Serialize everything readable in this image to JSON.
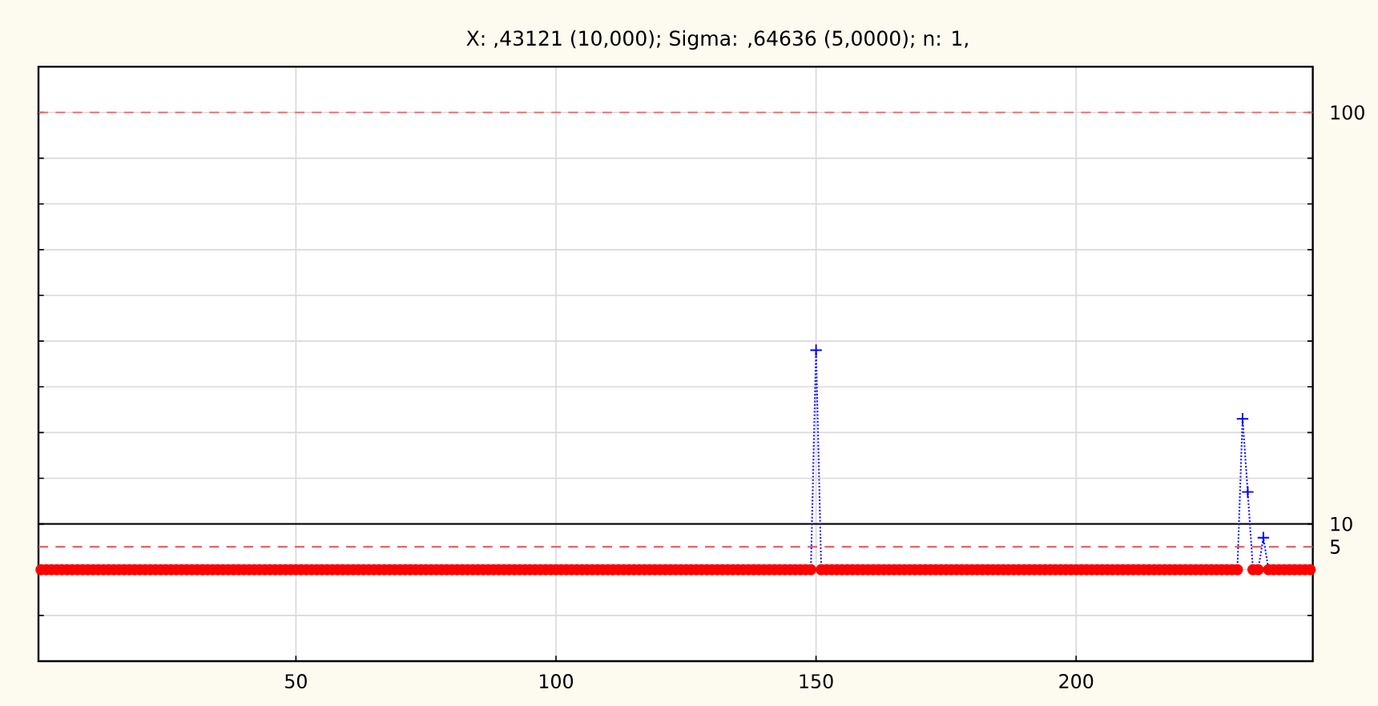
{
  "chart_data": {
    "type": "line",
    "title": "X: ,43121 (10,000); Sigma: ,64636 (5,0000); n: 1,",
    "x": [
      1,
      2,
      3,
      4,
      5,
      6,
      7,
      8,
      9,
      10,
      11,
      12,
      13,
      14,
      15,
      16,
      17,
      18,
      19,
      20,
      21,
      22,
      23,
      24,
      25,
      26,
      27,
      28,
      29,
      30,
      31,
      32,
      33,
      34,
      35,
      36,
      37,
      38,
      39,
      40,
      41,
      42,
      43,
      44,
      45,
      46,
      47,
      48,
      49,
      50,
      51,
      52,
      53,
      54,
      55,
      56,
      57,
      58,
      59,
      60,
      61,
      62,
      63,
      64,
      65,
      66,
      67,
      68,
      69,
      70,
      71,
      72,
      73,
      74,
      75,
      76,
      77,
      78,
      79,
      80,
      81,
      82,
      83,
      84,
      85,
      86,
      87,
      88,
      89,
      90,
      91,
      92,
      93,
      94,
      95,
      96,
      97,
      98,
      99,
      100,
      101,
      102,
      103,
      104,
      105,
      106,
      107,
      108,
      109,
      110,
      111,
      112,
      113,
      114,
      115,
      116,
      117,
      118,
      119,
      120,
      121,
      122,
      123,
      124,
      125,
      126,
      127,
      128,
      129,
      130,
      131,
      132,
      133,
      134,
      135,
      136,
      137,
      138,
      139,
      140,
      141,
      142,
      143,
      144,
      145,
      146,
      147,
      148,
      149,
      150,
      151,
      152,
      153,
      154,
      155,
      156,
      157,
      158,
      159,
      160,
      161,
      162,
      163,
      164,
      165,
      166,
      167,
      168,
      169,
      170,
      171,
      172,
      173,
      174,
      175,
      176,
      177,
      178,
      179,
      180,
      181,
      182,
      183,
      184,
      185,
      186,
      187,
      188,
      189,
      190,
      191,
      192,
      193,
      194,
      195,
      196,
      197,
      198,
      199,
      200,
      201,
      202,
      203,
      204,
      205,
      206,
      207,
      208,
      209,
      210,
      211,
      212,
      213,
      214,
      215,
      216,
      217,
      218,
      219,
      220,
      221,
      222,
      223,
      224,
      225,
      226,
      227,
      228,
      229,
      230,
      231,
      232,
      233,
      234,
      235,
      236,
      237,
      238,
      239,
      240,
      241,
      242,
      243,
      244,
      245
    ],
    "xlim": [
      0.5,
      245.5
    ],
    "xticks": [
      50,
      100,
      150,
      200
    ],
    "ylim": [
      -20,
      110
    ],
    "yticks": [
      {
        "value": -10,
        "label": null
      },
      {
        "value": 0,
        "label": null
      },
      {
        "value": 10,
        "label": null
      },
      {
        "value": 20,
        "label": null
      },
      {
        "value": 30,
        "label": null
      },
      {
        "value": 40,
        "label": null
      },
      {
        "value": 50,
        "label": null
      },
      {
        "value": 60,
        "label": null
      },
      {
        "value": 70,
        "label": null
      },
      {
        "value": 80,
        "label": null
      },
      {
        "value": 90,
        "label": null
      },
      {
        "value": 100,
        "label": null
      }
    ],
    "grid": true,
    "tick_labels": "x",
    "ref_lines": [
      {
        "axis": "y",
        "value": 100,
        "label": "100",
        "color": "#ff5a5a",
        "line_style": "dashed"
      },
      {
        "axis": "y",
        "value": 10,
        "label": "10",
        "color": "#000000",
        "line_style": "solid"
      },
      {
        "axis": "y",
        "value": 5,
        "label": "5",
        "color": "#ff5a5a",
        "line_style": "dashed"
      }
    ],
    "series": [
      {
        "type": "line",
        "color": "#2020ff",
        "marker": "none",
        "line_style": "dotted",
        "x": [
          149,
          150,
          151,
          152,
          231,
          232,
          233,
          234,
          235,
          236,
          237
        ],
        "values": [
          0,
          48,
          0,
          null,
          0,
          33,
          17,
          0,
          0,
          7,
          0
        ]
      },
      {
        "type": "scatter",
        "color": "#ff0000",
        "marker": "circle",
        "values": [
          0,
          0,
          0,
          0,
          0,
          0,
          0,
          0,
          0,
          0,
          0,
          0,
          0,
          0,
          0,
          0,
          0,
          0,
          0,
          0,
          0,
          0,
          0,
          0,
          0,
          0,
          0,
          0,
          0,
          0,
          0,
          0,
          0,
          0,
          0,
          0,
          0,
          0,
          0,
          0,
          0,
          0,
          0,
          0,
          0,
          0,
          0,
          0,
          0,
          0,
          0,
          0,
          0,
          0,
          0,
          0,
          0,
          0,
          0,
          0,
          0,
          0,
          0,
          0,
          0,
          0,
          0,
          0,
          0,
          0,
          0,
          0,
          0,
          0,
          0,
          0,
          0,
          0,
          0,
          0,
          0,
          0,
          0,
          0,
          0,
          0,
          0,
          0,
          0,
          0,
          0,
          0,
          0,
          0,
          0,
          0,
          0,
          0,
          0,
          0,
          0,
          0,
          0,
          0,
          0,
          0,
          0,
          0,
          0,
          0,
          0,
          0,
          0,
          0,
          0,
          0,
          0,
          0,
          0,
          0,
          0,
          0,
          0,
          0,
          0,
          0,
          0,
          0,
          0,
          0,
          0,
          0,
          0,
          0,
          0,
          0,
          0,
          0,
          0,
          0,
          0,
          0,
          0,
          0,
          0,
          0,
          0,
          0,
          0,
          null,
          0,
          0,
          0,
          0,
          0,
          0,
          0,
          0,
          0,
          0,
          0,
          0,
          0,
          0,
          0,
          0,
          0,
          0,
          0,
          0,
          0,
          0,
          0,
          0,
          0,
          0,
          0,
          0,
          0,
          0,
          0,
          0,
          0,
          0,
          0,
          0,
          0,
          0,
          0,
          0,
          0,
          0,
          0,
          0,
          0,
          0,
          0,
          0,
          0,
          0,
          0,
          0,
          0,
          0,
          0,
          0,
          0,
          0,
          0,
          0,
          0,
          0,
          0,
          0,
          0,
          0,
          0,
          0,
          0,
          0,
          0,
          0,
          0,
          0,
          0,
          0,
          0,
          0,
          0,
          0,
          0,
          null,
          null,
          0,
          0,
          null,
          0,
          0,
          0,
          0,
          0,
          0,
          0,
          0,
          0
        ]
      },
      {
        "type": "scatter",
        "color": "#0000ff",
        "marker": "cross",
        "x": [
          150,
          232,
          233,
          236
        ],
        "values": [
          48,
          33,
          17,
          7
        ]
      }
    ]
  }
}
